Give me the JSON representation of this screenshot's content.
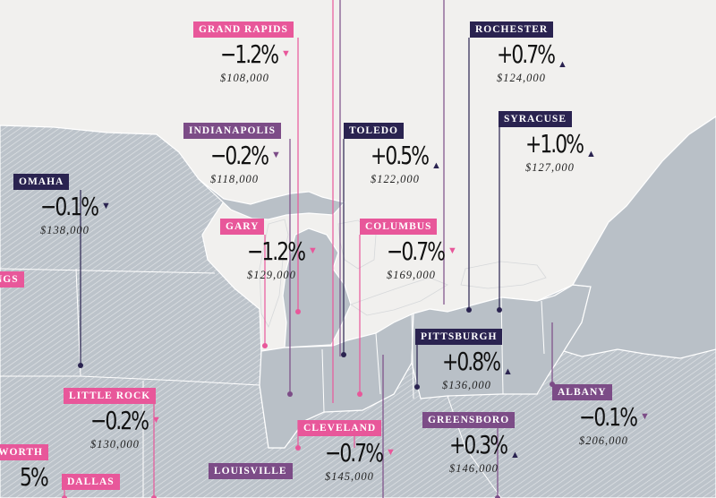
{
  "colors": {
    "pink": "#e8579a",
    "purple": "#7c4c87",
    "navy": "#2a2350",
    "land": "#b9c0c7"
  },
  "cities": [
    {
      "id": "grand-rapids",
      "name": "GRAND RAPIDS",
      "change": "−1.2%",
      "direction": "down",
      "price": "$108,000",
      "color": "pink"
    },
    {
      "id": "rochester",
      "name": "ROCHESTER",
      "change": "+0.7%",
      "direction": "up",
      "price": "$124,000",
      "color": "navy"
    },
    {
      "id": "indianapolis",
      "name": "INDIANAPOLIS",
      "change": "−0.2%",
      "direction": "down",
      "price": "$118,000",
      "color": "purple"
    },
    {
      "id": "toledo",
      "name": "TOLEDO",
      "change": "+0.5%",
      "direction": "up",
      "price": "$122,000",
      "color": "navy"
    },
    {
      "id": "syracuse",
      "name": "SYRACUSE",
      "change": "+1.0%",
      "direction": "up",
      "price": "$127,000",
      "color": "navy"
    },
    {
      "id": "omaha",
      "name": "OMAHA",
      "change": "−0.1%",
      "direction": "down",
      "price": "$138,000",
      "color": "navy"
    },
    {
      "id": "gary",
      "name": "GARY",
      "change": "−1.2%",
      "direction": "down",
      "price": "$129,000",
      "color": "pink"
    },
    {
      "id": "columbus",
      "name": "COLUMBUS",
      "change": "−0.7%",
      "direction": "down",
      "price": "$169,000",
      "color": "pink"
    },
    {
      "id": "pittsburgh",
      "name": "PITTSBURGH",
      "change": "+0.8%",
      "direction": "up",
      "price": "$136,000",
      "color": "navy"
    },
    {
      "id": "albany",
      "name": "ALBANY",
      "change": "−0.1%",
      "direction": "down",
      "price": "$206,000",
      "color": "purple"
    },
    {
      "id": "little-rock",
      "name": "LITTLE ROCK",
      "change": "−0.2%",
      "direction": "down",
      "price": "$130,000",
      "color": "pink"
    },
    {
      "id": "cleveland",
      "name": "CLEVELAND",
      "change": "−0.7%",
      "direction": "down",
      "price": "$145,000",
      "color": "pink"
    },
    {
      "id": "greensboro",
      "name": "GREENSBORO",
      "change": "+0.3%",
      "direction": "up",
      "price": "$146,000",
      "color": "purple"
    },
    {
      "id": "louisville",
      "name": "LOUISVILLE",
      "change": "",
      "direction": "",
      "price": "",
      "color": "purple"
    },
    {
      "id": "dallas",
      "name": "DALLAS",
      "change": "",
      "direction": "",
      "price": "",
      "color": "pink"
    },
    {
      "id": "fort-worth",
      "name": "WORTH",
      "change": "5%",
      "direction": "",
      "price": "",
      "color": "pink"
    },
    {
      "id": "cut-left",
      "name": "NGS",
      "change": "",
      "direction": "",
      "price": "",
      "color": "pink"
    }
  ]
}
